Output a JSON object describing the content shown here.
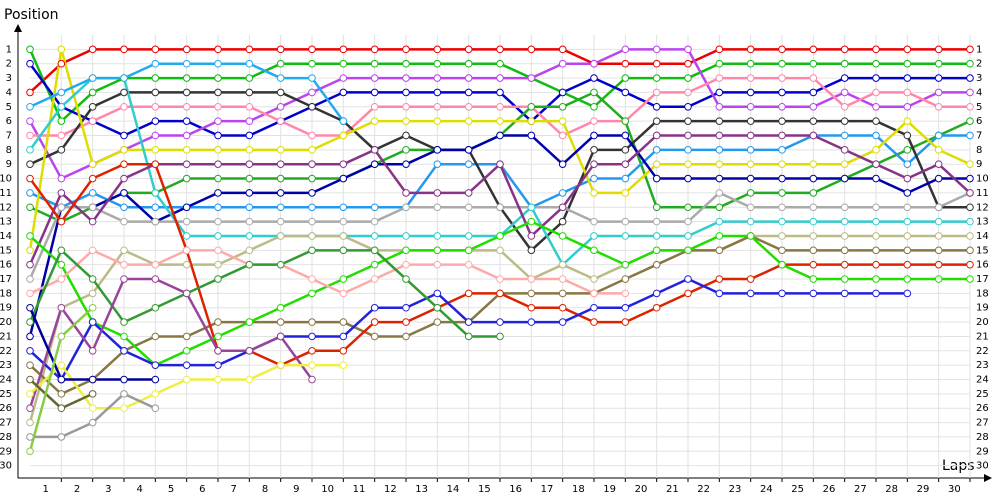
{
  "chart_data": {
    "type": "line",
    "y_label": "Position",
    "x_label": "Laps",
    "x": [
      0,
      1,
      2,
      3,
      4,
      5,
      6,
      7,
      8,
      9,
      10,
      11,
      12,
      13,
      14,
      15,
      16,
      17,
      18,
      19,
      20,
      21,
      22,
      23,
      24,
      25,
      26,
      27,
      28,
      29,
      30
    ],
    "xlim": [
      0,
      30
    ],
    "xticks": [
      1,
      2,
      3,
      4,
      5,
      6,
      7,
      8,
      9,
      10,
      11,
      12,
      13,
      14,
      15,
      16,
      17,
      18,
      19,
      20,
      21,
      22,
      23,
      24,
      25,
      26,
      27,
      28,
      29,
      30
    ],
    "ylim": [
      31,
      0
    ],
    "yticks": [
      1,
      2,
      3,
      4,
      5,
      6,
      7,
      8,
      9,
      10,
      11,
      12,
      13,
      14,
      15,
      16,
      17,
      18,
      19,
      20,
      21,
      22,
      23,
      24,
      25,
      26,
      27,
      28,
      29,
      30
    ],
    "grid": true,
    "series": [
      {
        "color": "#ee0000",
        "values": [
          4,
          2,
          1,
          1,
          1,
          1,
          1,
          1,
          1,
          1,
          1,
          1,
          1,
          1,
          1,
          1,
          1,
          1,
          2,
          2,
          2,
          2,
          1,
          1,
          1,
          1,
          1,
          1,
          1,
          1,
          1
        ]
      },
      {
        "color": "#11bb11",
        "values": [
          1,
          6,
          4,
          3,
          3,
          3,
          3,
          3,
          2,
          2,
          2,
          2,
          2,
          2,
          2,
          2,
          3,
          4,
          5,
          3,
          3,
          3,
          2,
          2,
          2,
          2,
          2,
          2,
          2,
          2,
          2
        ]
      },
      {
        "color": "#0000cc",
        "values": [
          2,
          5,
          6,
          7,
          6,
          6,
          7,
          7,
          6,
          5,
          4,
          4,
          4,
          4,
          4,
          4,
          6,
          4,
          3,
          4,
          5,
          5,
          4,
          4,
          4,
          4,
          3,
          3,
          3,
          3,
          3
        ]
      },
      {
        "color": "#bb44ee",
        "values": [
          6,
          10,
          9,
          8,
          7,
          7,
          6,
          6,
          5,
          4,
          3,
          3,
          3,
          3,
          3,
          3,
          3,
          2,
          2,
          1,
          1,
          1,
          5,
          5,
          5,
          5,
          4,
          5,
          5,
          4,
          4
        ]
      },
      {
        "color": "#ff88aa",
        "values": [
          7,
          7,
          6,
          5,
          5,
          5,
          5,
          5,
          6,
          7,
          7,
          5,
          5,
          5,
          5,
          5,
          5,
          7,
          6,
          6,
          4,
          4,
          3,
          3,
          3,
          3,
          5,
          4,
          4,
          5,
          5
        ]
      },
      {
        "color": "#22aa22",
        "values": [
          12,
          13,
          12,
          11,
          11,
          10,
          10,
          10,
          10,
          10,
          10,
          9,
          8,
          8,
          8,
          7,
          5,
          5,
          4,
          6,
          12,
          12,
          12,
          11,
          11,
          11,
          10,
          9,
          8,
          7,
          6
        ]
      },
      {
        "color": "#2299ee",
        "values": [
          11,
          12,
          11,
          12,
          12,
          12,
          12,
          12,
          12,
          12,
          12,
          12,
          12,
          9,
          9,
          9,
          12,
          11,
          10,
          10,
          8,
          8,
          8,
          8,
          8,
          7,
          7,
          7,
          9,
          7,
          7
        ]
      },
      {
        "color": "#333333",
        "values": [
          9,
          8,
          5,
          4,
          4,
          4,
          4,
          4,
          4,
          5,
          6,
          8,
          7,
          8,
          8,
          12,
          15,
          13,
          8,
          8,
          6,
          6,
          6,
          6,
          6,
          6,
          6,
          6,
          7,
          12,
          12
        ]
      },
      {
        "color": "#dddd00",
        "values": [
          15,
          1,
          9,
          8,
          8,
          8,
          8,
          8,
          8,
          8,
          7,
          6,
          6,
          6,
          6,
          6,
          6,
          6,
          11,
          11,
          9,
          9,
          9,
          9,
          9,
          9,
          9,
          8,
          6,
          8,
          9
        ]
      },
      {
        "color": "#0000aa",
        "values": [
          21,
          12,
          12,
          11,
          13,
          12,
          11,
          11,
          11,
          11,
          10,
          9,
          9,
          8,
          8,
          7,
          7,
          9,
          7,
          7,
          10,
          10,
          10,
          10,
          10,
          10,
          10,
          10,
          11,
          10,
          10
        ]
      },
      {
        "color": "#aaaaaa",
        "values": [
          17,
          12,
          12,
          13,
          13,
          13,
          13,
          13,
          13,
          13,
          13,
          13,
          12,
          12,
          12,
          12,
          12,
          12,
          13,
          13,
          13,
          13,
          11,
          12,
          12,
          12,
          12,
          12,
          12,
          12,
          11
        ]
      },
      {
        "color": "#33cccc",
        "values": [
          8,
          5,
          3,
          3,
          11,
          14,
          14,
          14,
          14,
          14,
          14,
          14,
          14,
          14,
          14,
          14,
          12,
          16,
          14,
          14,
          14,
          14,
          13,
          13,
          13,
          13,
          13,
          13,
          13,
          13,
          13
        ]
      },
      {
        "color": "#883388",
        "values": [
          16,
          11,
          13,
          10,
          9,
          9,
          9,
          9,
          9,
          9,
          9,
          8,
          11,
          11,
          11,
          9,
          14,
          12,
          9,
          9,
          7,
          7,
          7,
          7,
          7,
          7,
          8,
          9,
          10,
          9,
          11
        ]
      },
      {
        "color": "#bbbb88",
        "values": [
          27,
          19,
          18,
          15,
          16,
          16,
          16,
          15,
          14,
          14,
          14,
          15,
          15,
          15,
          15,
          15,
          17,
          16,
          17,
          16,
          15,
          15,
          15,
          14,
          14,
          14,
          14,
          14,
          14,
          14,
          14
        ]
      },
      {
        "color": "#887744",
        "values": [
          23,
          25,
          24,
          22,
          21,
          21,
          20,
          20,
          20,
          20,
          20,
          21,
          21,
          20,
          20,
          18,
          18,
          18,
          18,
          17,
          16,
          15,
          15,
          14,
          15,
          15,
          15,
          15,
          15,
          15,
          15
        ]
      },
      {
        "color": "#dd2200",
        "values": [
          10,
          13,
          10,
          9,
          9,
          15,
          22,
          22,
          23,
          22,
          22,
          20,
          20,
          19,
          18,
          18,
          19,
          19,
          20,
          20,
          19,
          18,
          17,
          17,
          16,
          16,
          16,
          16,
          16,
          16,
          16
        ]
      },
      {
        "color": "#22dd00",
        "values": [
          14,
          16,
          20,
          21,
          23,
          22,
          21,
          20,
          19,
          18,
          17,
          16,
          15,
          15,
          15,
          14,
          13,
          14,
          15,
          16,
          15,
          15,
          14,
          14,
          16,
          17,
          17,
          17,
          17,
          17,
          17
        ]
      },
      {
        "color": "#2222dd",
        "values": [
          22,
          24,
          20,
          22,
          23,
          23,
          23,
          22,
          21,
          21,
          21,
          19,
          19,
          18,
          20,
          20,
          20,
          20,
          19,
          19,
          18,
          17,
          18,
          18,
          18,
          18,
          18,
          18,
          18,
          null,
          null
        ]
      },
      {
        "color": "#ffaaaa",
        "values": [
          18,
          17,
          15,
          16,
          16,
          15,
          15,
          16,
          16,
          17,
          18,
          17,
          16,
          16,
          16,
          17,
          17,
          17,
          18,
          18,
          null,
          null,
          null,
          null,
          null,
          null,
          null,
          null,
          null,
          null,
          null
        ]
      },
      {
        "color": "#339933",
        "values": [
          20,
          15,
          17,
          20,
          19,
          18,
          17,
          16,
          16,
          15,
          15,
          15,
          17,
          19,
          21,
          21,
          null,
          null,
          null,
          null,
          null,
          null,
          null,
          null,
          null,
          null,
          null,
          null,
          null,
          null,
          null
        ]
      },
      {
        "color": "#994499",
        "values": [
          26,
          19,
          22,
          17,
          17,
          18,
          22,
          22,
          21,
          24,
          null,
          null,
          null,
          null,
          null,
          null,
          null,
          null,
          null,
          null,
          null,
          null,
          null,
          null,
          null,
          null,
          null,
          null,
          null,
          null,
          null
        ]
      },
      {
        "color": "#eeee44",
        "values": [
          25,
          23,
          26,
          26,
          25,
          24,
          24,
          24,
          23,
          23,
          23,
          null,
          null,
          null,
          null,
          null,
          null,
          null,
          null,
          null,
          null,
          null,
          null,
          null,
          null,
          null,
          null,
          null,
          null,
          null,
          null
        ]
      },
      {
        "color": "#999999",
        "values": [
          28,
          28,
          27,
          25,
          26,
          null,
          null,
          null,
          null,
          null,
          null,
          null,
          null,
          null,
          null,
          null,
          null,
          null,
          null,
          null,
          null,
          null,
          null,
          null,
          null,
          null,
          null,
          null,
          null,
          null,
          null
        ]
      },
      {
        "color": "#000099",
        "values": [
          19,
          24,
          24,
          24,
          24,
          null,
          null,
          null,
          null,
          null,
          null,
          null,
          null,
          null,
          null,
          null,
          null,
          null,
          null,
          null,
          null,
          null,
          null,
          null,
          null,
          null,
          null,
          null,
          null,
          null,
          null
        ]
      },
      {
        "color": "#666633",
        "values": [
          24,
          26,
          25,
          null,
          null,
          null,
          null,
          null,
          null,
          null,
          null,
          null,
          null,
          null,
          null,
          null,
          null,
          null,
          null,
          null,
          null,
          null,
          null,
          null,
          null,
          null,
          null,
          null,
          null,
          null,
          null
        ]
      },
      {
        "color": "#88cc44",
        "values": [
          29,
          21,
          19,
          null,
          null,
          null,
          null,
          null,
          null,
          null,
          null,
          null,
          null,
          null,
          null,
          null,
          null,
          null,
          null,
          null,
          null,
          null,
          null,
          null,
          null,
          null,
          null,
          null,
          null,
          null,
          null
        ]
      },
      {
        "color": "#22aaee",
        "values": [
          5,
          4,
          3,
          3,
          2,
          2,
          2,
          2,
          3,
          3,
          6,
          null,
          null,
          null,
          null,
          null,
          null,
          null,
          null,
          null,
          null,
          null,
          null,
          null,
          null,
          null,
          null,
          null,
          null,
          null,
          null
        ]
      }
    ]
  }
}
